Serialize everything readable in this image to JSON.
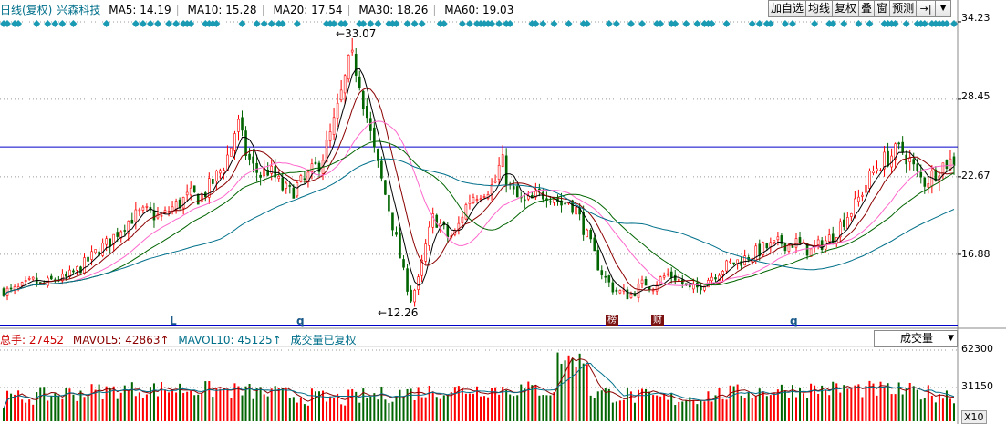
{
  "legend": {
    "prefix": "日线(复权)",
    "stock_name": "兴森科技",
    "ma": [
      {
        "label": "MA5: 14.19",
        "color": "#000000"
      },
      {
        "label": "MA10: 15.28",
        "color": "#8b0000"
      },
      {
        "label": "MA20: 17.54",
        "color": "#ff66cc"
      },
      {
        "label": "MA30: 18.26",
        "color": "#006400"
      },
      {
        "label": "MA60: 19.03",
        "color": "#006f8a"
      }
    ]
  },
  "toolbar": {
    "buttons": [
      "加自选",
      "均线",
      "复权",
      "叠",
      "窗",
      "预测"
    ],
    "icon_play": "→|",
    "icon_dropdown": "▼"
  },
  "y_axis_main": [
    "34.23",
    "28.45",
    "22.67",
    "16.88"
  ],
  "price_annotations": {
    "high": "33.07",
    "low": "12.26"
  },
  "markers": [
    "L",
    "q",
    "q"
  ],
  "event_tags": [
    "榜",
    "财"
  ],
  "volume": {
    "legend": [
      {
        "label": "总手: 27452",
        "color": "#cc0000"
      },
      {
        "label": "MAVOL5: 42863↑",
        "color": "#8b0000"
      },
      {
        "label": "MAVOL10: 45125↑",
        "color": "#006f8a"
      },
      {
        "label": "成交量已复权",
        "color": "#006f8a"
      }
    ],
    "selector": "成交量",
    "y_axis": [
      "62300",
      "31150"
    ],
    "unit": "X10"
  },
  "colors": {
    "up": "#ff0000",
    "down": "#006400",
    "diamond": "#1a9bb3",
    "hline": "#0000cc",
    "grid": "#999999"
  },
  "chart_data": {
    "type": "candlestick",
    "title": "日线(复权) 兴森科技",
    "y_range": [
      11.5,
      34.5
    ],
    "y_ticks": [
      34.23,
      28.45,
      22.67,
      16.88
    ],
    "horizontal_lines": [
      24.9,
      11.6
    ],
    "high": 33.07,
    "low": 12.26,
    "close_path": [
      14.2,
      14.1,
      14.3,
      14.6,
      14.9,
      14.5,
      14.8,
      15.1,
      15.0,
      15.4,
      15.8,
      16.3,
      16.9,
      17.4,
      17.8,
      18.5,
      19.1,
      19.6,
      19.9,
      20.0,
      19.8,
      19.6,
      20.2,
      20.6,
      21.0,
      21.3,
      21.1,
      21.7,
      22.5,
      23.4,
      24.6,
      26.8,
      24.6,
      23.4,
      22.8,
      23.2,
      22.6,
      21.8,
      21.5,
      22.0,
      22.4,
      23.1,
      23.8,
      25.2,
      27.0,
      29.3,
      31.5,
      30.5,
      27.6,
      24.8,
      22.6,
      20.5,
      18.1,
      15.5,
      13.6,
      14.9,
      17.6,
      19.7,
      19.0,
      18.1,
      18.5,
      20.2,
      21.2,
      21.5,
      21.8,
      22.0,
      24.0,
      21.9,
      21.1,
      20.7,
      20.9,
      21.3,
      21.5,
      21.2,
      20.6,
      20.9,
      20.1,
      18.7,
      17.3,
      15.8,
      14.9,
      14.2,
      14.0,
      13.8,
      14.3,
      14.8,
      14.5,
      15.0,
      15.4,
      15.2,
      14.7,
      14.2,
      14.4,
      14.9,
      15.3,
      15.7,
      16.1,
      16.3,
      16.5,
      16.8,
      17.1,
      17.4,
      17.5,
      17.8,
      17.6,
      17.8,
      17.4,
      17.1,
      17.5,
      17.9,
      18.3,
      19.2,
      19.9,
      20.6,
      21.8,
      22.8,
      23.6,
      24.0,
      24.4,
      24.7,
      24.0,
      22.9,
      22.3,
      22.7,
      23.4,
      23.7,
      23.9
    ],
    "ma_series": [
      "MA5",
      "MA10",
      "MA20",
      "MA30",
      "MA60"
    ],
    "ma_values_last": {
      "MA5": 14.19,
      "MA10": 15.28,
      "MA20": 17.54,
      "MA30": 18.26,
      "MA60": 19.03
    },
    "volume_ticks": [
      62300,
      31150
    ],
    "volume_last": 27452,
    "mavol5_last": 42863,
    "mavol10_last": 45125
  }
}
